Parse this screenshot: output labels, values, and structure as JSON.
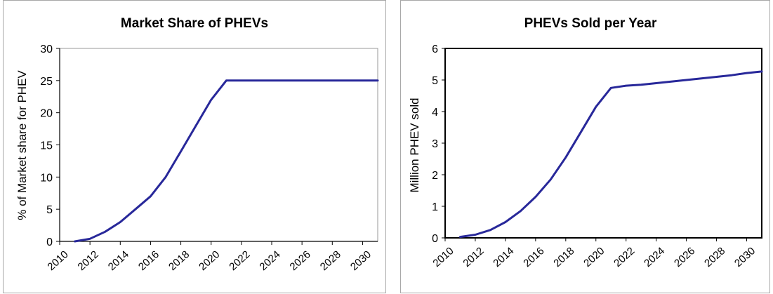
{
  "chart_data": [
    {
      "type": "line",
      "title": "Market Share of PHEVs",
      "xlabel": "",
      "ylabel": "% of Market share for PHEV",
      "x_ticks": [
        "2010",
        "2012",
        "2014",
        "2016",
        "2018",
        "2020",
        "2022",
        "2024",
        "2026",
        "2028",
        "2030"
      ],
      "y_ticks": [
        "0",
        "5",
        "10",
        "15",
        "20",
        "25",
        "30"
      ],
      "xlim": [
        2010,
        2031
      ],
      "ylim": [
        0,
        30
      ],
      "grid": false,
      "line_color": "#28289a",
      "series": [
        {
          "x": [
            2011,
            2012,
            2013,
            2014,
            2015,
            2016,
            2017,
            2018,
            2019,
            2020,
            2021,
            2022,
            2023,
            2024,
            2025,
            2026,
            2027,
            2028,
            2029,
            2030,
            2031
          ],
          "y": [
            0,
            0.4,
            1.5,
            3.0,
            5.0,
            7.0,
            10.0,
            14.0,
            18.0,
            22.0,
            25,
            25,
            25,
            25,
            25,
            25,
            25,
            25,
            25,
            25,
            25
          ]
        }
      ]
    },
    {
      "type": "line",
      "title": "PHEVs Sold per Year",
      "xlabel": "",
      "ylabel": "Million PHEV sold",
      "x_ticks": [
        "2010",
        "2012",
        "2014",
        "2016",
        "2018",
        "2020",
        "2022",
        "2024",
        "2026",
        "2028",
        "2030"
      ],
      "y_ticks": [
        "0",
        "1",
        "2",
        "3",
        "4",
        "5",
        "6"
      ],
      "xlim": [
        2010,
        2031
      ],
      "ylim": [
        0,
        6
      ],
      "grid": false,
      "line_color": "#28289a",
      "series": [
        {
          "x": [
            2011,
            2012,
            2013,
            2014,
            2015,
            2016,
            2017,
            2018,
            2019,
            2020,
            2021,
            2022,
            2023,
            2024,
            2025,
            2026,
            2027,
            2028,
            2029,
            2030,
            2031
          ],
          "y": [
            0.03,
            0.1,
            0.25,
            0.5,
            0.85,
            1.3,
            1.85,
            2.55,
            3.35,
            4.15,
            4.75,
            4.82,
            4.85,
            4.9,
            4.95,
            5.0,
            5.05,
            5.1,
            5.15,
            5.22,
            5.27
          ]
        }
      ]
    }
  ]
}
